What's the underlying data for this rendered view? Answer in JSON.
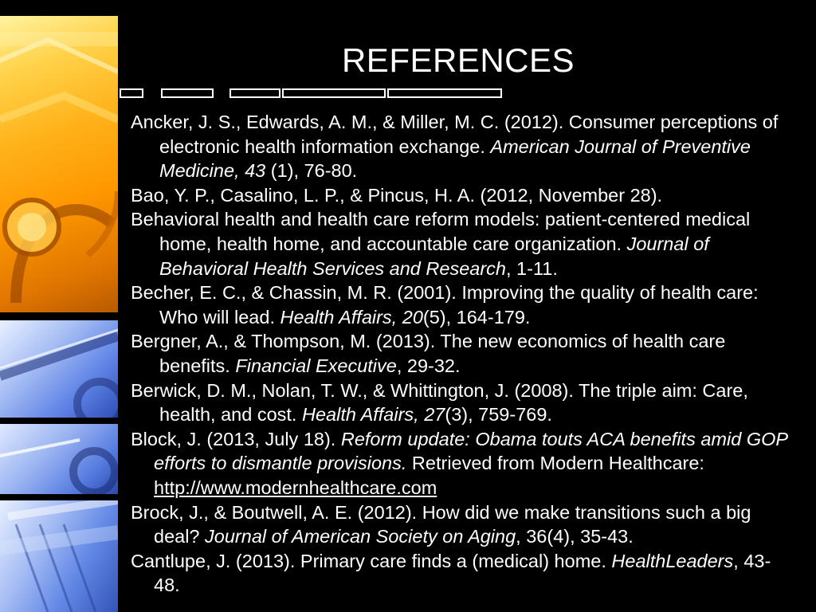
{
  "slide": {
    "title": "REFERENCES"
  },
  "references": [
    {
      "normal1": "Ancker, J. S., Edwards, A. M., & Miller, M. C. (2012). Consumer perceptions of electronic health information exchange. ",
      "italic": "American Journal of Preventive Medicine, 43",
      "normal2": " (1), 76-80."
    },
    {
      "normal1": "Bao, Y. P., Casalino, L. P., & Pincus, H. A. (2012, November 28).",
      "italic": "",
      "normal2": ""
    },
    {
      "normal1": "Behavioral health and health care reform models: patient-centered medical home, health home, and accountable care organization. ",
      "italic": "Journal of Behavioral Health Services and Research",
      "normal2": ", 1-11."
    },
    {
      "normal1": "Becher, E. C., & Chassin, M. R. (2001). Improving the quality of health care: Who will lead. ",
      "italic": "Health Affairs, 20",
      "normal2": "(5), 164-179."
    },
    {
      "normal1": "Bergner, A., & Thompson, M. (2013). The new economics of health care benefits. ",
      "italic": "Financial Executive",
      "normal2": ", 29-32."
    },
    {
      "normal1": "Berwick, D. M., Nolan, T. W., & Whittington, J. (2008). The triple aim: Care, health, and cost. ",
      "italic": "Health Affairs, 27",
      "normal2": "(3), 759-769."
    },
    {
      "normal1": "Block, J. (2013, July 18). ",
      "italic": "Reform update: Obama touts ACA benefits amid GOP efforts to dismantle provisions.",
      "normal2": " Retrieved from Modern Healthcare: ",
      "link": "http://www.modernhealthcare.com"
    },
    {
      "normal1": "Brock, J., & Boutwell, A. E. (2012). How did we make transitions such a big deal? ",
      "italic": "Journal of American Society on Aging",
      "normal2": ", 36(4), 35-43."
    },
    {
      "normal1": "Cantlupe, J. (2013). Primary care finds a (medical) home. ",
      "italic": "HealthLeaders",
      "normal2": ", 43-48."
    }
  ]
}
